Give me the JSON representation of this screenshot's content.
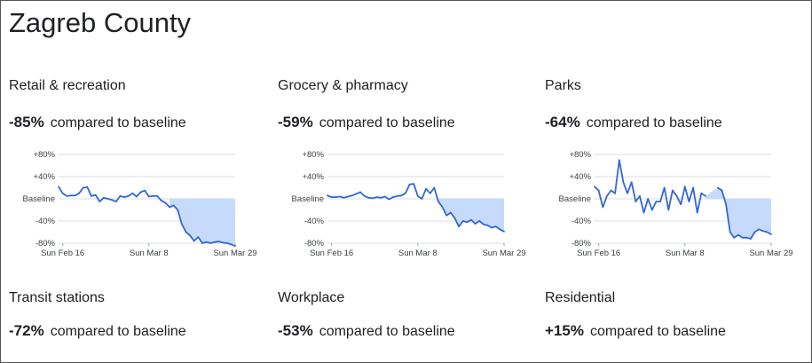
{
  "region": "Zagreb County",
  "panels": [
    {
      "title": "Retail & recreation",
      "change": "-85%",
      "compared_text": "compared to baseline",
      "chart_data": {
        "type": "area",
        "y_ticks": [
          "+80%",
          "+40%",
          "Baseline",
          "-40%",
          "-80%"
        ],
        "ylim": [
          -80,
          80
        ],
        "x_ticks": [
          "Sun Feb 16",
          "Sun Mar 8",
          "Sun Mar 29"
        ],
        "x_start": "2020-02-15",
        "x_end": "2020-03-29",
        "shaded_from": "2020-03-13",
        "series": [
          {
            "x": [
              "2020-02-15",
              "2020-02-16",
              "2020-02-17",
              "2020-02-18",
              "2020-02-19",
              "2020-02-20",
              "2020-02-21",
              "2020-02-22",
              "2020-02-23",
              "2020-02-24",
              "2020-02-25",
              "2020-02-26",
              "2020-02-27",
              "2020-02-28",
              "2020-02-29",
              "2020-03-01",
              "2020-03-02",
              "2020-03-03",
              "2020-03-04",
              "2020-03-05",
              "2020-03-06",
              "2020-03-07",
              "2020-03-08",
              "2020-03-09",
              "2020-03-10",
              "2020-03-11",
              "2020-03-12",
              "2020-03-13",
              "2020-03-14",
              "2020-03-15",
              "2020-03-16",
              "2020-03-17",
              "2020-03-18",
              "2020-03-19",
              "2020-03-20",
              "2020-03-21",
              "2020-03-22",
              "2020-03-23",
              "2020-03-24",
              "2020-03-25",
              "2020-03-26",
              "2020-03-27",
              "2020-03-28",
              "2020-03-29"
            ],
            "values": [
              22,
              10,
              5,
              6,
              6,
              10,
              20,
              21,
              5,
              7,
              -5,
              2,
              0,
              -2,
              -5,
              5,
              3,
              5,
              10,
              4,
              12,
              15,
              4,
              5,
              5,
              -3,
              -7,
              -15,
              -12,
              -20,
              -45,
              -60,
              -66,
              -76,
              -69,
              -80,
              -78,
              -80,
              -78,
              -77,
              -79,
              -80,
              -82,
              -85
            ]
          }
        ]
      }
    },
    {
      "title": "Grocery & pharmacy",
      "change": "-59%",
      "compared_text": "compared to baseline",
      "chart_data": {
        "type": "area",
        "y_ticks": [
          "+80%",
          "+40%",
          "Baseline",
          "-40%",
          "-80%"
        ],
        "ylim": [
          -80,
          80
        ],
        "x_ticks": [
          "Sun Feb 16",
          "Sun Mar 8",
          "Sun Mar 29"
        ],
        "x_start": "2020-02-15",
        "x_end": "2020-03-29",
        "shaded_from": "2020-03-13",
        "series": [
          {
            "x": [
              "2020-02-15",
              "2020-02-16",
              "2020-02-17",
              "2020-02-18",
              "2020-02-19",
              "2020-02-20",
              "2020-02-21",
              "2020-02-22",
              "2020-02-23",
              "2020-02-24",
              "2020-02-25",
              "2020-02-26",
              "2020-02-27",
              "2020-02-28",
              "2020-02-29",
              "2020-03-01",
              "2020-03-02",
              "2020-03-03",
              "2020-03-04",
              "2020-03-05",
              "2020-03-06",
              "2020-03-07",
              "2020-03-08",
              "2020-03-09",
              "2020-03-10",
              "2020-03-11",
              "2020-03-12",
              "2020-03-13",
              "2020-03-14",
              "2020-03-15",
              "2020-03-16",
              "2020-03-17",
              "2020-03-18",
              "2020-03-19",
              "2020-03-20",
              "2020-03-21",
              "2020-03-22",
              "2020-03-23",
              "2020-03-24",
              "2020-03-25",
              "2020-03-26",
              "2020-03-27",
              "2020-03-28",
              "2020-03-29"
            ],
            "values": [
              6,
              3,
              3,
              4,
              2,
              4,
              6,
              9,
              12,
              5,
              2,
              1,
              3,
              2,
              4,
              -1,
              3,
              5,
              6,
              10,
              26,
              27,
              5,
              0,
              18,
              10,
              20,
              -5,
              -15,
              -30,
              -25,
              -35,
              -50,
              -40,
              -42,
              -38,
              -45,
              -40,
              -46,
              -48,
              -52,
              -50,
              -55,
              -59
            ]
          }
        ]
      }
    },
    {
      "title": "Parks",
      "change": "-64%",
      "compared_text": "compared to baseline",
      "chart_data": {
        "type": "area",
        "y_ticks": [
          "+80%",
          "+40%",
          "Baseline",
          "-40%",
          "-80%"
        ],
        "ylim": [
          -80,
          80
        ],
        "x_ticks": [
          "Sun Feb 16",
          "Sun Mar 8",
          "Sun Mar 29"
        ],
        "x_start": "2020-02-15",
        "x_end": "2020-03-29",
        "shaded_from": "2020-03-13",
        "series": [
          {
            "x": [
              "2020-02-15",
              "2020-02-16",
              "2020-02-17",
              "2020-02-18",
              "2020-02-19",
              "2020-02-20",
              "2020-02-21",
              "2020-02-22",
              "2020-02-23",
              "2020-02-24",
              "2020-02-25",
              "2020-02-26",
              "2020-02-27",
              "2020-02-28",
              "2020-02-29",
              "2020-03-01",
              "2020-03-02",
              "2020-03-03",
              "2020-03-04",
              "2020-03-05",
              "2020-03-06",
              "2020-03-07",
              "2020-03-08",
              "2020-03-09",
              "2020-03-10",
              "2020-03-11",
              "2020-03-12",
              "2020-03-13",
              "2020-03-14",
              "2020-03-15",
              "2020-03-16",
              "2020-03-17",
              "2020-03-18",
              "2020-03-19",
              "2020-03-20",
              "2020-03-21",
              "2020-03-22",
              "2020-03-23",
              "2020-03-24",
              "2020-03-25",
              "2020-03-26",
              "2020-03-27",
              "2020-03-28",
              "2020-03-29"
            ],
            "values": [
              22,
              15,
              -15,
              5,
              15,
              10,
              70,
              30,
              10,
              30,
              -5,
              5,
              -25,
              0,
              -20,
              -5,
              -5,
              20,
              -20,
              15,
              5,
              -10,
              22,
              -5,
              20,
              -25,
              10,
              5,
              null,
              null,
              20,
              15,
              -10,
              -60,
              -70,
              -65,
              -70,
              -70,
              -72,
              -60,
              -55,
              -58,
              -60,
              -64
            ]
          }
        ]
      }
    },
    {
      "title": "Transit stations",
      "change": "-72%",
      "compared_text": "compared to baseline"
    },
    {
      "title": "Workplace",
      "change": "-53%",
      "compared_text": "compared to baseline"
    },
    {
      "title": "Residential",
      "change": "+15%",
      "compared_text": "compared to baseline"
    }
  ],
  "colors": {
    "line": "#3367d6",
    "fill": "#c6dafc",
    "grid": "#dadce0",
    "text": "#202124"
  }
}
